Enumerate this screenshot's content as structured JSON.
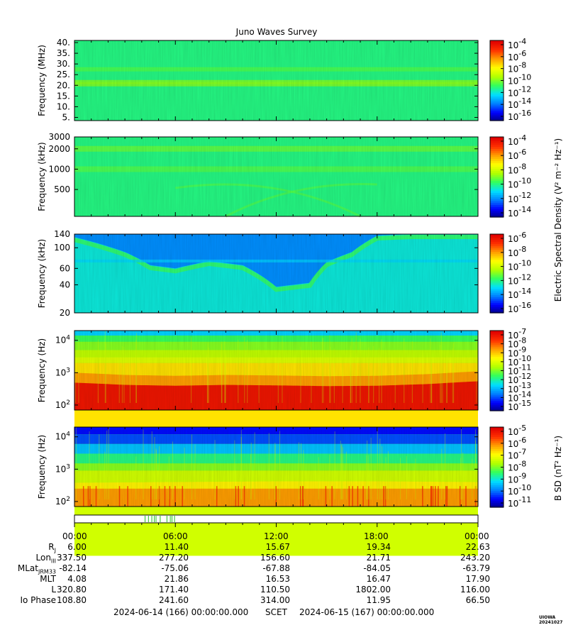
{
  "title": "Juno Waves Survey",
  "colors": {
    "cmap": [
      "#00007f",
      "#0000ff",
      "#0080ff",
      "#00e0ff",
      "#30ff60",
      "#b0ff00",
      "#ffff00",
      "#ffa000",
      "#ff3000",
      "#e00000"
    ]
  },
  "chart_data": [
    {
      "type": "heatmap",
      "panel": "1",
      "ylabel": "Frequency (MHz)",
      "yticks": [
        "5.",
        "10.",
        "15.",
        "20.",
        "25.",
        "30.",
        "35.",
        "40."
      ],
      "ylim": [
        3.5,
        41
      ],
      "background_level": 0.42,
      "bands": [
        {
          "freq": 20.5,
          "level": 0.52
        },
        {
          "freq": 21.5,
          "level": 0.52
        },
        {
          "freq": 27.5,
          "level": 0.47
        }
      ],
      "colorbar_ticks": [
        "-4",
        "-6",
        "-8",
        "-10",
        "-12",
        "-14",
        "-16"
      ]
    },
    {
      "type": "heatmap",
      "panel": "2",
      "ylabel": "Frequency (kHz)",
      "yticks": [
        "3000",
        "2000",
        "1000",
        "500"
      ],
      "scale": "log",
      "background_level": 0.42,
      "bands": [
        {
          "freq": 2000,
          "level": 0.5
        },
        {
          "freq": 1000,
          "level": 0.48
        }
      ],
      "colorbar_ticks": [
        "-4",
        "-6",
        "-8",
        "-10",
        "-12",
        "-14"
      ]
    },
    {
      "type": "heatmap",
      "panel": "3",
      "ylabel": "Frequency (kHz)",
      "yticks": [
        "140",
        "100",
        "60",
        "40",
        "20"
      ],
      "scale": "log",
      "ylim": [
        20,
        140
      ],
      "background_level": 0.24,
      "emission_lower_edge_kHz": {
        "hours": [
          0,
          1.5,
          3,
          4.5,
          6,
          8,
          10,
          12,
          14,
          15,
          16.5,
          18,
          20,
          22,
          24
        ],
        "values": [
          130,
          110,
          90,
          65,
          60,
          72,
          65,
          38,
          42,
          70,
          90,
          135,
          140,
          140,
          140
        ]
      },
      "colorbar_ticks": [
        "-6",
        "-8",
        "-10",
        "-12",
        "-14",
        "-16"
      ]
    },
    {
      "type": "heatmap",
      "panel": "4",
      "ylabel": "Frequency (Hz)",
      "yticks": [
        "10^4",
        "10^3",
        "10^2"
      ],
      "scale": "log",
      "ylim": [
        70,
        20000
      ],
      "red_boundary_Hz": {
        "hours": [
          0,
          3,
          6,
          9,
          12,
          15,
          18,
          21,
          24
        ],
        "values": [
          1000,
          850,
          800,
          850,
          820,
          780,
          800,
          900,
          1100
        ]
      },
      "colorbar_ticks": [
        "-7",
        "-8",
        "-9",
        "-10",
        "-11",
        "-12",
        "-13",
        "-14",
        "-15"
      ]
    },
    {
      "type": "heatmap",
      "panel": "5",
      "ylabel": "Frequency (Hz)",
      "yticks": [
        "10^4",
        "10^3",
        "10^2"
      ],
      "scale": "log",
      "ylim": [
        70,
        20000
      ],
      "yellow_boundary_Hz": {
        "hours": [
          0,
          6,
          12,
          18,
          24
        ],
        "values": [
          380,
          400,
          420,
          420,
          400
        ]
      },
      "colorbar_ticks": [
        "-5",
        "-6",
        "-7",
        "-8",
        "-9",
        "-10",
        "-11"
      ]
    }
  ],
  "colorbar_labels": {
    "electric": "Electric Spectral Density (V² m⁻² Hz⁻¹)",
    "magnetic": "B SD (nT² Hz⁻¹)"
  },
  "activity_marks_hours": [
    4.2,
    4.4,
    4.6,
    4.75,
    4.85,
    5.1,
    5.5,
    5.7,
    5.8,
    5.95
  ],
  "time_labels": [
    "00:00",
    "06:00",
    "12:00",
    "18:00",
    "00:00"
  ],
  "ephemeris": [
    {
      "label": "R",
      "sub": "J",
      "values": [
        "6.00",
        "11.40",
        "15.67",
        "19.34",
        "22.63"
      ]
    },
    {
      "label": "Lon",
      "sub": "III",
      "values": [
        "337.50",
        "277.20",
        "156.60",
        "21.71",
        "243.20"
      ]
    },
    {
      "label": "MLat",
      "sub": "JRM33",
      "values": [
        "-82.14",
        "-75.06",
        "-67.88",
        "-84.05",
        "-63.79"
      ]
    },
    {
      "label": "MLT",
      "sub": "",
      "values": [
        "4.08",
        "21.86",
        "16.53",
        "16.47",
        "17.90"
      ]
    },
    {
      "label": "L",
      "sub": "",
      "values": [
        "320.80",
        "171.40",
        "110.50",
        "1802.00",
        "116.00"
      ]
    },
    {
      "label": "Io Phase",
      "sub": "",
      "values": [
        "108.80",
        "241.60",
        "314.00",
        "11.95",
        "66.50"
      ]
    }
  ],
  "scet": {
    "start": "2024-06-14 (166) 00:00:00.000",
    "label": "SCET",
    "end": "2024-06-15 (167) 00:00:00.000"
  },
  "credit": "UIOWA 20241027"
}
